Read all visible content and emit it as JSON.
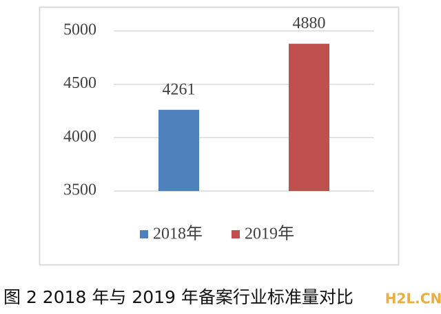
{
  "chart_data": {
    "type": "bar",
    "categories": [
      null
    ],
    "series": [
      {
        "name": "2018年",
        "color": "#4f81bd",
        "values": [
          4261
        ]
      },
      {
        "name": "2019年",
        "color": "#c0504d",
        "values": [
          4880
        ]
      }
    ],
    "ylim": [
      3500,
      5000
    ],
    "yticks": [
      3500,
      4000,
      4500,
      5000
    ],
    "grid": true,
    "legend": "bottom"
  },
  "caption": "图 2  2018 年与 2019 年备案行业标准量对比",
  "watermark": "H2L.CN"
}
